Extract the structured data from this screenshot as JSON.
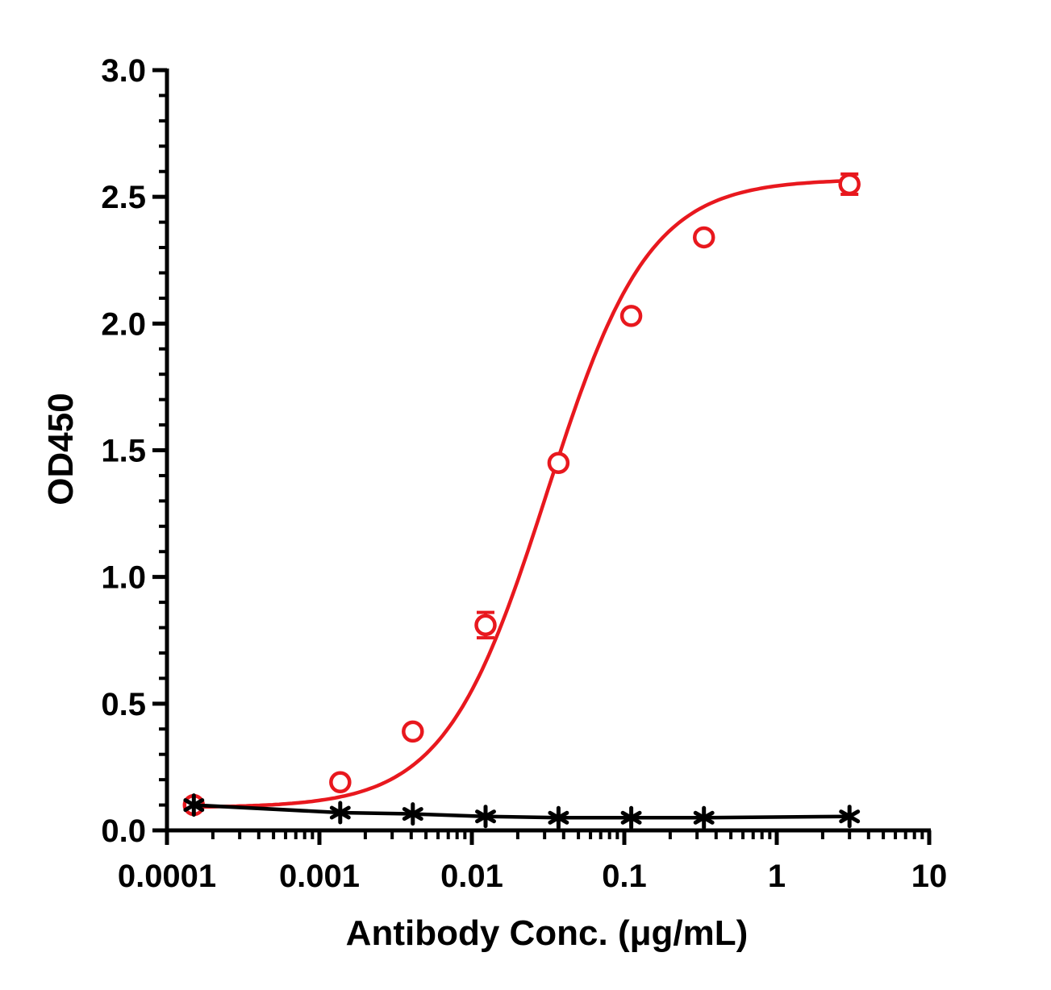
{
  "chart_data": {
    "type": "scatter",
    "xlabel": "Antibody Conc. (μg/mL)",
    "ylabel": "OD450",
    "x_scale": "log",
    "xlim": [
      0.0001,
      10
    ],
    "ylim": [
      0,
      3.0
    ],
    "x_ticks": [
      {
        "value": 0.0001,
        "label": "0.0001"
      },
      {
        "value": 0.001,
        "label": "0.001"
      },
      {
        "value": 0.01,
        "label": "0.01"
      },
      {
        "value": 0.1,
        "label": "0.1"
      },
      {
        "value": 1,
        "label": "1"
      },
      {
        "value": 10,
        "label": "10"
      }
    ],
    "y_ticks": [
      {
        "value": 0,
        "label": "0.0"
      },
      {
        "value": 0.5,
        "label": "0.5"
      },
      {
        "value": 1.0,
        "label": "1.0"
      },
      {
        "value": 1.5,
        "label": "1.5"
      },
      {
        "value": 2.0,
        "label": "2.0"
      },
      {
        "value": 2.5,
        "label": "2.5"
      },
      {
        "value": 3.0,
        "label": "3.0"
      }
    ],
    "y_minor_step": 0.1,
    "grid": false,
    "legend": "none",
    "series": [
      {
        "color": "#e8181e",
        "marker": "open-circle",
        "x": [
          0.00015,
          0.00137,
          0.0041,
          0.0123,
          0.037,
          0.111,
          0.333,
          3.0
        ],
        "y": [
          0.1,
          0.19,
          0.39,
          0.81,
          1.45,
          2.03,
          2.34,
          2.55
        ],
        "err": [
          0.01,
          0.01,
          0.02,
          0.05,
          0.02,
          0.02,
          0.02,
          0.04
        ],
        "fit": {
          "model": "4PL",
          "bottom": 0.09,
          "top": 2.57,
          "ec50": 0.031,
          "hill": 1.3
        }
      },
      {
        "color": "#000000",
        "marker": "asterisk",
        "x": [
          0.00015,
          0.00137,
          0.0041,
          0.0123,
          0.037,
          0.111,
          0.333,
          3.0
        ],
        "y": [
          0.1,
          0.07,
          0.065,
          0.055,
          0.05,
          0.05,
          0.05,
          0.055
        ],
        "line": "connect"
      }
    ]
  }
}
